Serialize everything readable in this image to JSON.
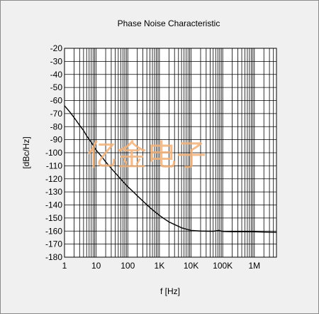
{
  "chart_data": {
    "type": "line",
    "title": "Phase Noise Characteristic",
    "xlabel": "f [Hz]",
    "ylabel": "[dBc/Hz]",
    "x_scale": "log",
    "xlim": [
      1,
      5000000
    ],
    "ylim": [
      -180,
      -20
    ],
    "grid": true,
    "x_ticks": [
      {
        "value": 1,
        "label": "1"
      },
      {
        "value": 10,
        "label": "10"
      },
      {
        "value": 100,
        "label": "100"
      },
      {
        "value": 1000,
        "label": "1K"
      },
      {
        "value": 10000,
        "label": "10K"
      },
      {
        "value": 100000,
        "label": "100K"
      },
      {
        "value": 1000000,
        "label": "1M"
      }
    ],
    "y_ticks": [
      -20,
      -30,
      -40,
      -50,
      -60,
      -70,
      -80,
      -90,
      -100,
      -110,
      -120,
      -130,
      -140,
      -150,
      -160,
      -170,
      -180
    ],
    "series": [
      {
        "color": "#000000",
        "points": [
          [
            1,
            -64
          ],
          [
            1.5,
            -69
          ],
          [
            2,
            -73
          ],
          [
            3,
            -79
          ],
          [
            4,
            -83
          ],
          [
            5,
            -87
          ],
          [
            7,
            -92
          ],
          [
            10,
            -98
          ],
          [
            15,
            -103
          ],
          [
            20,
            -107
          ],
          [
            30,
            -112
          ],
          [
            50,
            -118
          ],
          [
            70,
            -122
          ],
          [
            100,
            -126
          ],
          [
            150,
            -130
          ],
          [
            200,
            -133
          ],
          [
            300,
            -137
          ],
          [
            500,
            -142
          ],
          [
            700,
            -145
          ],
          [
            1000,
            -148
          ],
          [
            1500,
            -151
          ],
          [
            2000,
            -153
          ],
          [
            3000,
            -155
          ],
          [
            5000,
            -157.5
          ],
          [
            7000,
            -158.5
          ],
          [
            10000,
            -159.5
          ],
          [
            20000,
            -160
          ],
          [
            50000,
            -160.2
          ],
          [
            75000,
            -159.5
          ],
          [
            100000,
            -160.3
          ],
          [
            200000,
            -160.5
          ],
          [
            500000,
            -160.5
          ],
          [
            1000000,
            -160.6
          ],
          [
            2000000,
            -160.8
          ],
          [
            5000000,
            -161
          ]
        ]
      }
    ],
    "watermark": "亿金电子"
  }
}
